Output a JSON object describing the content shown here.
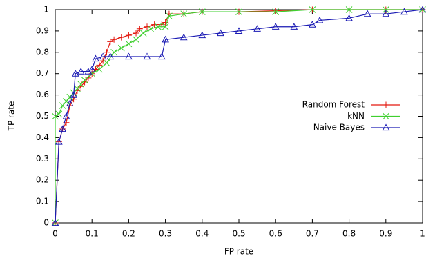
{
  "chart_data": {
    "type": "line",
    "xlabel": "FP rate",
    "ylabel": "TP rate",
    "xlim": [
      0,
      1
    ],
    "ylim": [
      0,
      1
    ],
    "xticks": [
      0,
      0.1,
      0.2,
      0.3,
      0.4,
      0.5,
      0.6,
      0.7,
      0.8,
      0.9,
      1
    ],
    "yticks": [
      0,
      0.1,
      0.2,
      0.3,
      0.4,
      0.5,
      0.6,
      0.7,
      0.8,
      0.9,
      1
    ],
    "grid": false,
    "legend": "right",
    "series": [
      {
        "name": "Random Forest",
        "color": "#e3170d",
        "marker": "plus",
        "x": [
          0,
          0.01,
          0.02,
          0.03,
          0.04,
          0.05,
          0.06,
          0.07,
          0.08,
          0.09,
          0.1,
          0.11,
          0.12,
          0.13,
          0.14,
          0.15,
          0.16,
          0.18,
          0.2,
          0.22,
          0.23,
          0.25,
          0.27,
          0.29,
          0.3,
          0.31,
          0.35,
          0.4,
          0.5,
          0.6,
          0.7,
          0.8,
          0.9,
          1
        ],
        "values": [
          0,
          0.38,
          0.44,
          0.47,
          0.55,
          0.58,
          0.62,
          0.64,
          0.66,
          0.68,
          0.7,
          0.72,
          0.74,
          0.76,
          0.8,
          0.85,
          0.86,
          0.87,
          0.88,
          0.89,
          0.91,
          0.92,
          0.93,
          0.93,
          0.94,
          0.98,
          0.98,
          0.99,
          0.99,
          0.995,
          1,
          1,
          1,
          1
        ]
      },
      {
        "name": "kNN",
        "color": "#3fcf2f",
        "marker": "cross",
        "x": [
          0,
          0,
          0.01,
          0.02,
          0.03,
          0.04,
          0.05,
          0.06,
          0.07,
          0.08,
          0.1,
          0.12,
          0.14,
          0.16,
          0.18,
          0.2,
          0.22,
          0.24,
          0.26,
          0.28,
          0.3,
          0.31,
          0.35,
          0.4,
          0.5,
          0.6,
          0.7,
          0.8,
          0.9,
          1
        ],
        "values": [
          0,
          0.5,
          0.51,
          0.55,
          0.57,
          0.59,
          0.61,
          0.63,
          0.65,
          0.67,
          0.7,
          0.72,
          0.75,
          0.8,
          0.82,
          0.84,
          0.86,
          0.89,
          0.91,
          0.92,
          0.92,
          0.97,
          0.98,
          0.99,
          0.99,
          0.99,
          1,
          1,
          1,
          1
        ]
      },
      {
        "name": "Naive Bayes",
        "color": "#1a1ab4",
        "marker": "triangle",
        "x": [
          0,
          0.01,
          0.02,
          0.03,
          0.04,
          0.05,
          0.055,
          0.07,
          0.09,
          0.1,
          0.11,
          0.13,
          0.15,
          0.2,
          0.25,
          0.29,
          0.3,
          0.35,
          0.4,
          0.45,
          0.5,
          0.55,
          0.6,
          0.65,
          0.7,
          0.72,
          0.8,
          0.85,
          0.9,
          0.95,
          1
        ],
        "values": [
          0,
          0.38,
          0.44,
          0.5,
          0.56,
          0.6,
          0.7,
          0.71,
          0.71,
          0.72,
          0.77,
          0.78,
          0.78,
          0.78,
          0.78,
          0.78,
          0.86,
          0.87,
          0.88,
          0.89,
          0.9,
          0.91,
          0.92,
          0.92,
          0.93,
          0.95,
          0.96,
          0.98,
          0.98,
          0.99,
          1
        ]
      }
    ]
  }
}
